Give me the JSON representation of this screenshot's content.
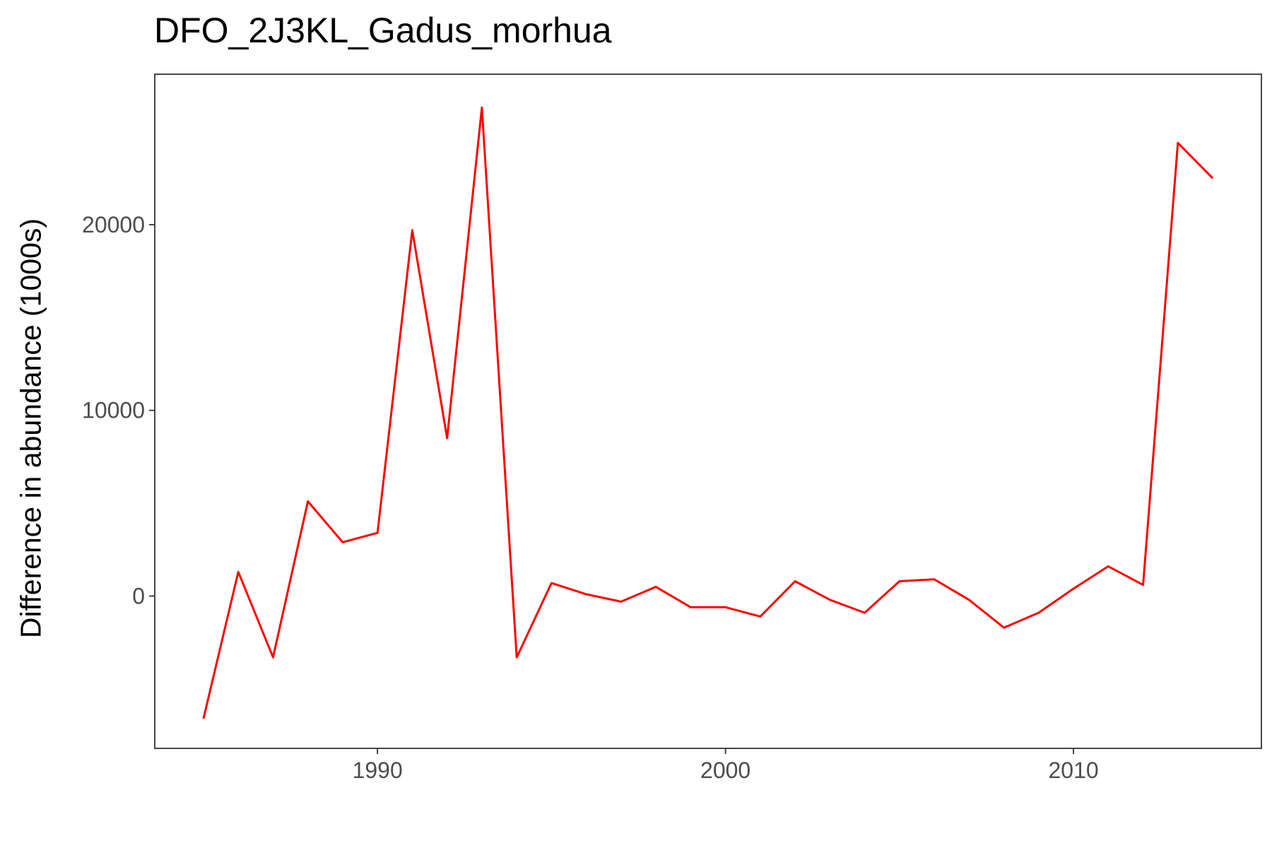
{
  "chart_data": {
    "type": "line",
    "title": "DFO_2J3KL_Gadus_morhua",
    "xlabel": "",
    "ylabel": "Difference in abundance (1000s)",
    "xlim": [
      1983.6,
      2015.4
    ],
    "ylim": [
      -8200,
      28100
    ],
    "x_ticks": [
      1990,
      2000,
      2010
    ],
    "y_ticks": [
      0,
      10000,
      20000
    ],
    "grid": false,
    "legend": "none",
    "series": [
      {
        "color": "#ff0000",
        "x": [
          1985,
          1986,
          1987,
          1988,
          1989,
          1990,
          1991,
          1992,
          1993,
          1994,
          1995,
          1996,
          1997,
          1998,
          1999,
          2000,
          2001,
          2002,
          2003,
          2004,
          2005,
          2006,
          2007,
          2008,
          2009,
          2010,
          2011,
          2012,
          2013,
          2014
        ],
        "y": [
          -6600,
          1300,
          -3300,
          5100,
          2900,
          3400,
          19700,
          8500,
          26300,
          -3300,
          700,
          100,
          -300,
          500,
          -600,
          -600,
          -1100,
          800,
          -200,
          -900,
          800,
          900,
          -200,
          -1700,
          -900,
          400,
          1600,
          600,
          24400,
          22500
        ]
      }
    ]
  }
}
